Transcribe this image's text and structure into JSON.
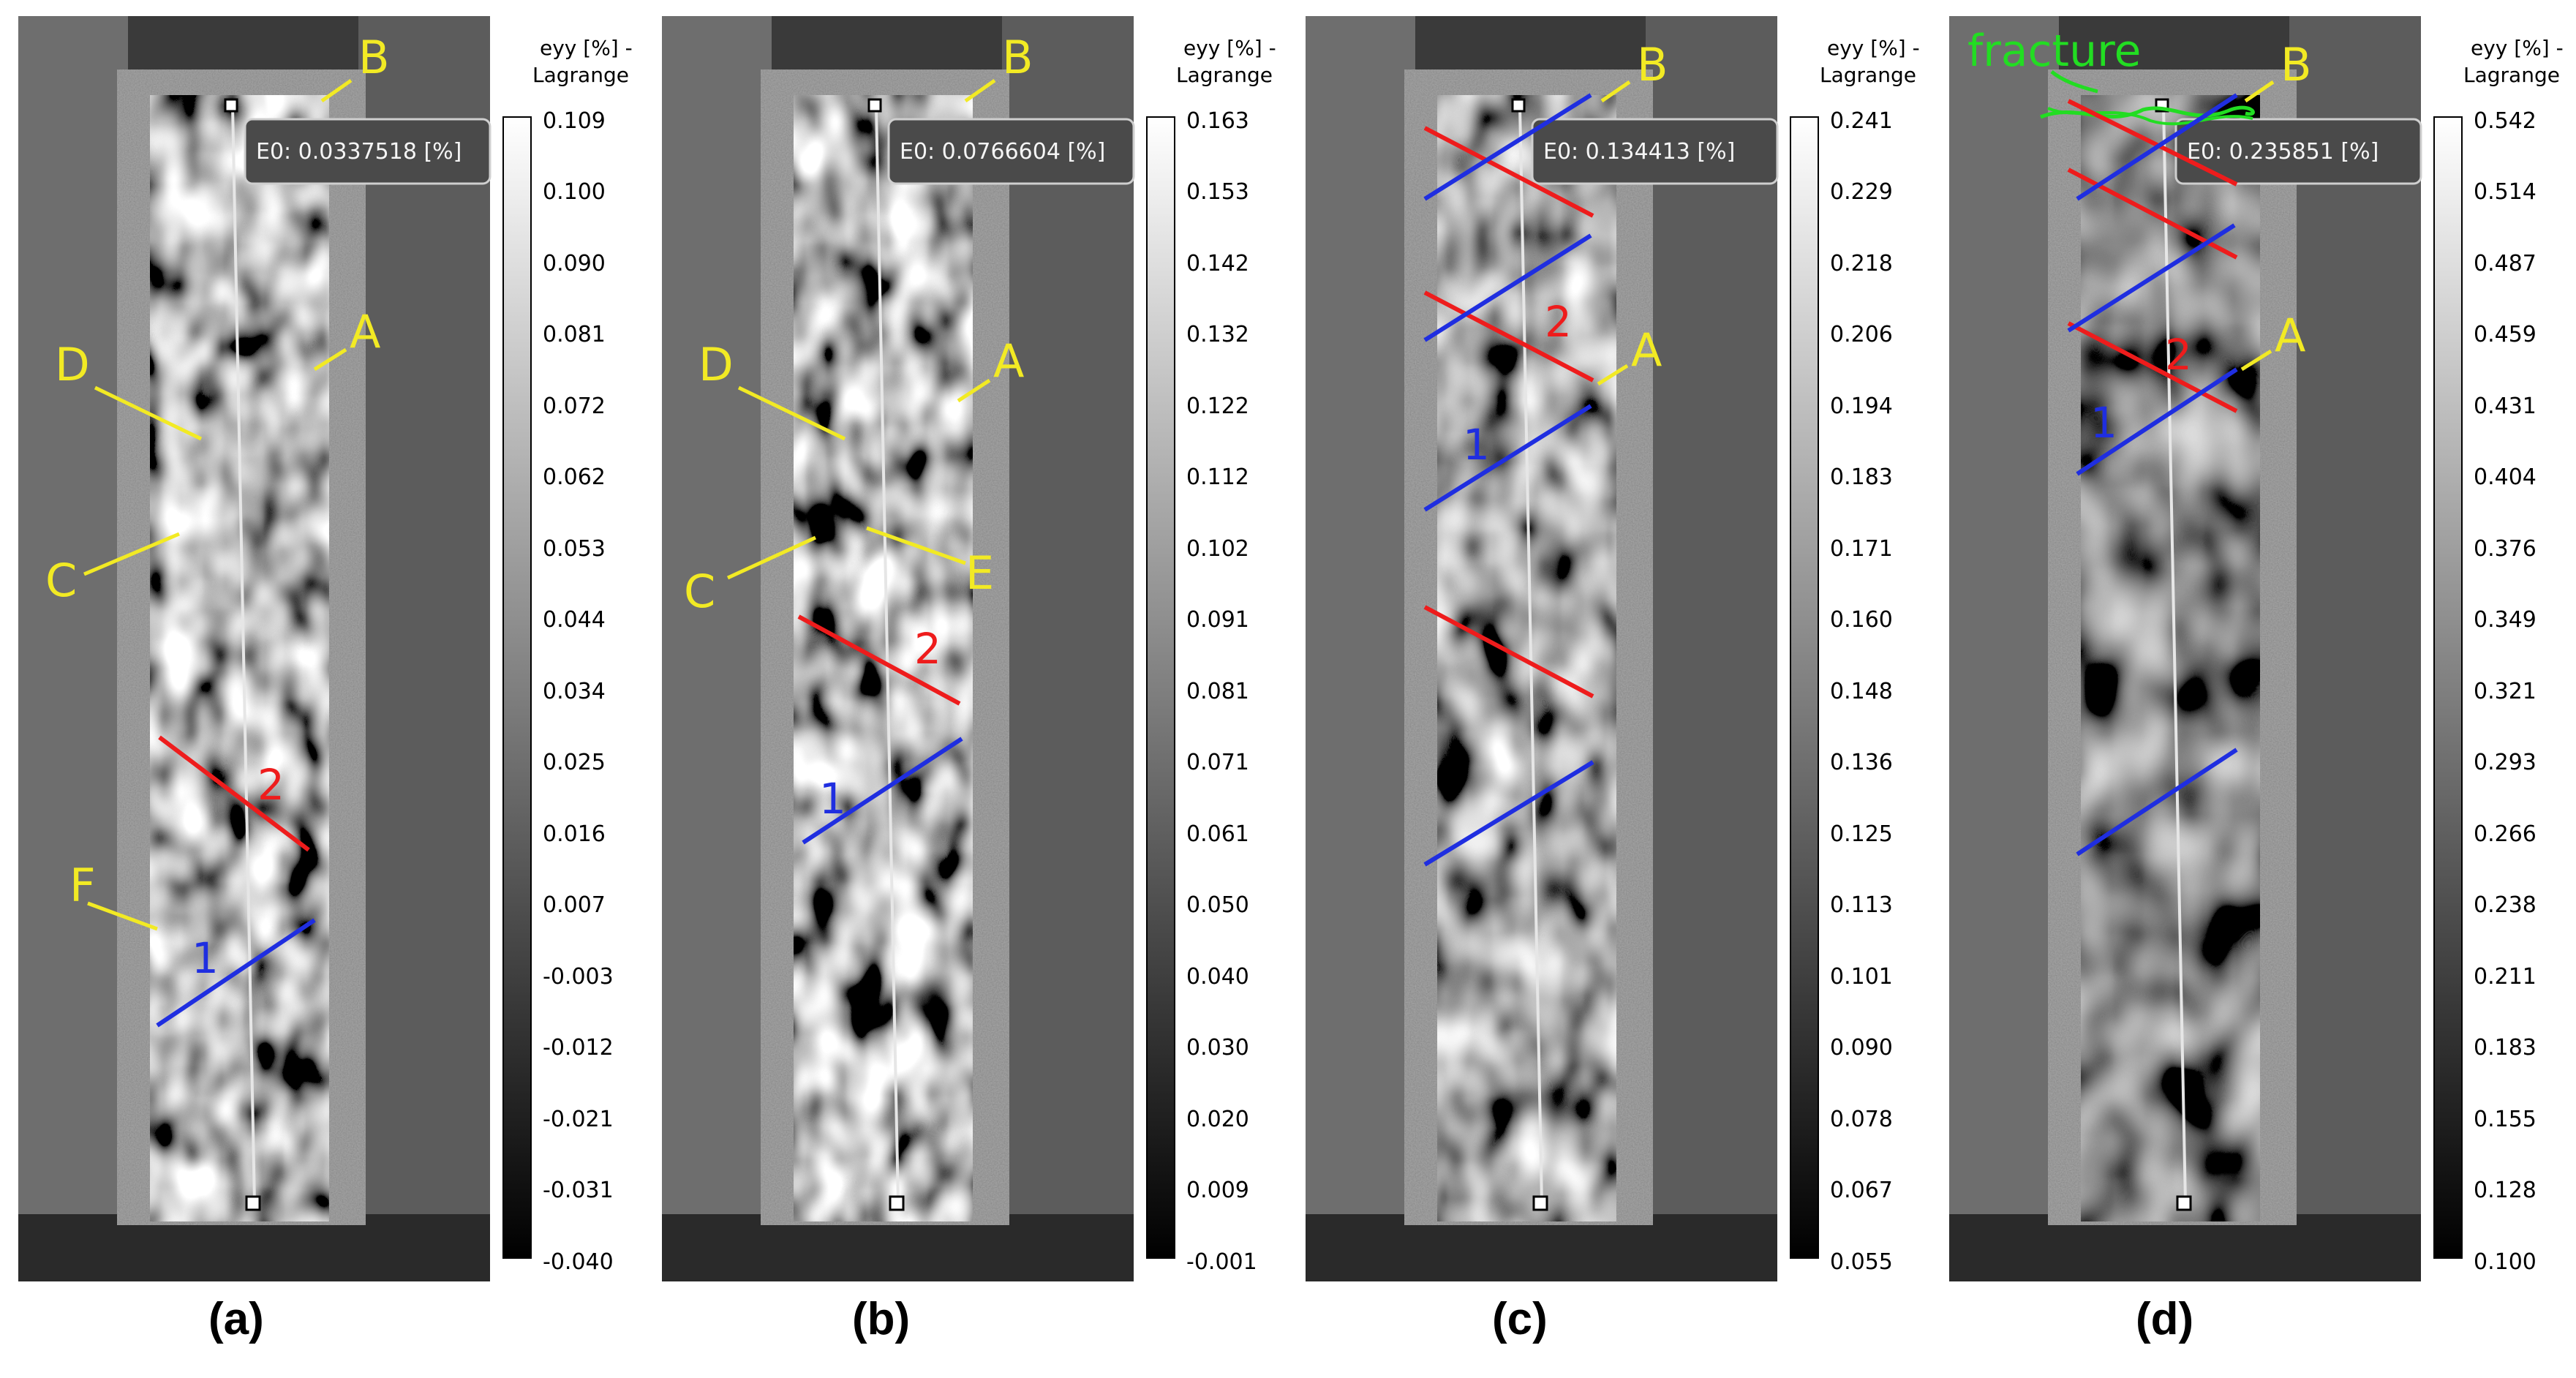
{
  "colorbar_title": [
    "eyy [%] -",
    "Lagrange"
  ],
  "panels": [
    {
      "caption": "(a)",
      "readout": "E0: 0.0337518 [%]",
      "scale": [
        "0.109",
        "0.100",
        "0.090",
        "0.081",
        "0.072",
        "0.062",
        "0.053",
        "0.044",
        "0.034",
        "0.025",
        "0.016",
        "0.007",
        "-0.003",
        "-0.012",
        "-0.021",
        "-0.031",
        "-0.040"
      ],
      "labels": [
        "B",
        "A",
        "D",
        "C",
        "F"
      ],
      "lines": [
        "2",
        "1"
      ]
    },
    {
      "caption": "(b)",
      "readout": "E0: 0.0766604 [%]",
      "scale": [
        "0.163",
        "0.153",
        "0.142",
        "0.132",
        "0.122",
        "0.112",
        "0.102",
        "0.091",
        "0.081",
        "0.071",
        "0.061",
        "0.050",
        "0.040",
        "0.030",
        "0.020",
        "0.009",
        "-0.001"
      ],
      "labels": [
        "B",
        "A",
        "D",
        "C",
        "E"
      ],
      "lines": [
        "2",
        "1"
      ]
    },
    {
      "caption": "(c)",
      "readout": "E0: 0.134413 [%]",
      "scale": [
        "0.241",
        "0.229",
        "0.218",
        "0.206",
        "0.194",
        "0.183",
        "0.171",
        "0.160",
        "0.148",
        "0.136",
        "0.125",
        "0.113",
        "0.101",
        "0.090",
        "0.078",
        "0.067",
        "0.055"
      ],
      "labels": [
        "B",
        "A"
      ],
      "lines": [
        "2",
        "1"
      ]
    },
    {
      "caption": "(d)",
      "readout": "E0: 0.235851 [%]",
      "scale": [
        "0.542",
        "0.514",
        "0.487",
        "0.459",
        "0.431",
        "0.404",
        "0.376",
        "0.349",
        "0.321",
        "0.293",
        "0.266",
        "0.238",
        "0.211",
        "0.183",
        "0.155",
        "0.128",
        "0.100"
      ],
      "labels": [
        "B",
        "A"
      ],
      "lines": [
        "2",
        "1"
      ],
      "annotation": "fracture"
    }
  ],
  "colors": {
    "label_yellow": "#f2ea24",
    "line_red": "#ee1c1c",
    "line_blue": "#1f2ee0",
    "fracture_green": "#22dd22"
  }
}
